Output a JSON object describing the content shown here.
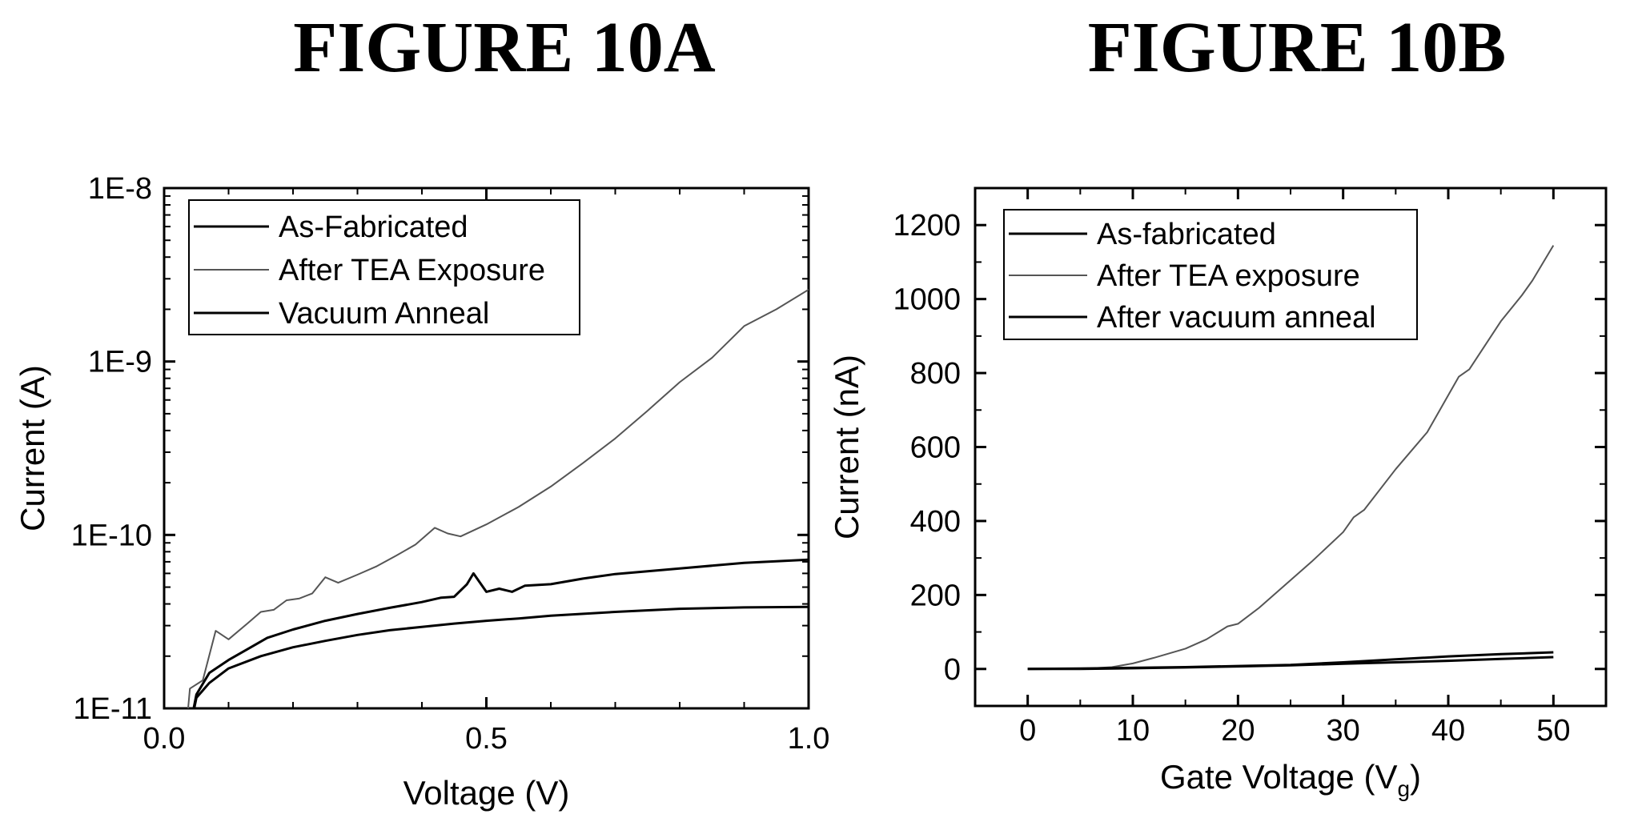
{
  "chart_data": [
    {
      "type": "line",
      "title": "FIGURE 10A",
      "xlabel": "Voltage (V)",
      "ylabel": "Current (A)",
      "xlim": [
        0.0,
        1.0
      ],
      "ylim": [
        1e-11,
        1e-08
      ],
      "yscale": "log",
      "x_ticks": [
        0.0,
        0.5,
        1.0
      ],
      "x_tick_labels": [
        "0.0",
        "0.5",
        "1.0"
      ],
      "y_ticks": [
        1e-11,
        1e-10,
        1e-09,
        1e-08
      ],
      "y_tick_labels": [
        "1E-11",
        "1E-10",
        "1E-9",
        "1E-8"
      ],
      "legend_position": "top-left",
      "series": [
        {
          "name": "As-Fabricated",
          "color": "#000000",
          "x": [
            0.03,
            0.05,
            0.07,
            0.1,
            0.15,
            0.2,
            0.25,
            0.3,
            0.35,
            0.4,
            0.45,
            0.5,
            0.55,
            0.6,
            0.7,
            0.8,
            0.9,
            1.0
          ],
          "y": [
            5e-12,
            1.15e-11,
            1.4e-11,
            1.7e-11,
            2e-11,
            2.25e-11,
            2.45e-11,
            2.65e-11,
            2.82e-11,
            2.95e-11,
            3.08e-11,
            3.2e-11,
            3.3e-11,
            3.42e-11,
            3.6e-11,
            3.75e-11,
            3.82e-11,
            3.85e-11
          ]
        },
        {
          "name": "After TEA Exposure",
          "color": "#555555",
          "x": [
            0.03,
            0.04,
            0.06,
            0.08,
            0.1,
            0.13,
            0.15,
            0.17,
            0.19,
            0.21,
            0.23,
            0.25,
            0.27,
            0.3,
            0.33,
            0.36,
            0.39,
            0.42,
            0.44,
            0.46,
            0.5,
            0.55,
            0.6,
            0.65,
            0.7,
            0.75,
            0.8,
            0.85,
            0.9,
            0.95,
            1.0
          ],
          "y": [
            5e-12,
            1.3e-11,
            1.45e-11,
            2.8e-11,
            2.5e-11,
            3.1e-11,
            3.6e-11,
            3.7e-11,
            4.2e-11,
            4.3e-11,
            4.6e-11,
            5.7e-11,
            5.3e-11,
            5.9e-11,
            6.6e-11,
            7.6e-11,
            8.8e-11,
            1.1e-10,
            1.02e-10,
            9.8e-11,
            1.15e-10,
            1.45e-10,
            1.9e-10,
            2.6e-10,
            3.6e-10,
            5.2e-10,
            7.6e-10,
            1.05e-09,
            1.6e-09,
            2e-09,
            2.6e-09
          ]
        },
        {
          "name": "Vacuum Anneal",
          "color": "#000000",
          "x": [
            0.03,
            0.05,
            0.07,
            0.1,
            0.13,
            0.16,
            0.2,
            0.25,
            0.3,
            0.35,
            0.4,
            0.43,
            0.45,
            0.47,
            0.48,
            0.5,
            0.52,
            0.54,
            0.56,
            0.6,
            0.65,
            0.7,
            0.8,
            0.9,
            1.0
          ],
          "y": [
            5e-12,
            1.2e-11,
            1.6e-11,
            1.9e-11,
            2.2e-11,
            2.55e-11,
            2.85e-11,
            3.2e-11,
            3.5e-11,
            3.8e-11,
            4.1e-11,
            4.35e-11,
            4.4e-11,
            5.2e-11,
            6e-11,
            4.7e-11,
            4.9e-11,
            4.7e-11,
            5.1e-11,
            5.2e-11,
            5.6e-11,
            5.95e-11,
            6.4e-11,
            6.9e-11,
            7.2e-11
          ]
        }
      ]
    },
    {
      "type": "line",
      "title": "FIGURE 10B",
      "xlabel": "Gate Voltage (V",
      "xlabel_subscript": "g",
      "xlabel_suffix": ")",
      "ylabel": "Current (nA)",
      "xlim": [
        -5,
        55
      ],
      "ylim": [
        -100,
        1300
      ],
      "x_ticks": [
        0,
        10,
        20,
        30,
        40,
        50
      ],
      "x_tick_labels": [
        "0",
        "10",
        "20",
        "30",
        "40",
        "50"
      ],
      "y_ticks": [
        0,
        200,
        400,
        600,
        800,
        1000,
        1200
      ],
      "y_tick_labels": [
        "0",
        "200",
        "400",
        "600",
        "800",
        "1000",
        "1200"
      ],
      "legend_position": "top-left",
      "series": [
        {
          "name": "As-fabricated",
          "color": "#000000",
          "x": [
            0,
            5,
            10,
            15,
            20,
            25,
            30,
            35,
            40,
            45,
            50
          ],
          "y": [
            0,
            0,
            2,
            4,
            7,
            10,
            14,
            18,
            22,
            27,
            32
          ]
        },
        {
          "name": "After TEA exposure",
          "color": "#555555",
          "x": [
            0,
            5,
            8,
            10,
            12,
            15,
            17,
            19,
            20,
            22,
            25,
            27,
            30,
            31,
            32,
            35,
            38,
            40,
            41,
            42,
            45,
            47,
            48,
            50
          ],
          "y": [
            0,
            0,
            5,
            15,
            30,
            55,
            80,
            115,
            122,
            165,
            240,
            290,
            370,
            410,
            430,
            540,
            640,
            740,
            790,
            810,
            940,
            1010,
            1050,
            1145
          ]
        },
        {
          "name": "After vacuum anneal",
          "color": "#000000",
          "x": [
            0,
            5,
            10,
            15,
            20,
            25,
            30,
            35,
            40,
            45,
            50
          ],
          "y": [
            0,
            1,
            3,
            5,
            8,
            11,
            18,
            26,
            34,
            40,
            45
          ]
        }
      ]
    }
  ]
}
